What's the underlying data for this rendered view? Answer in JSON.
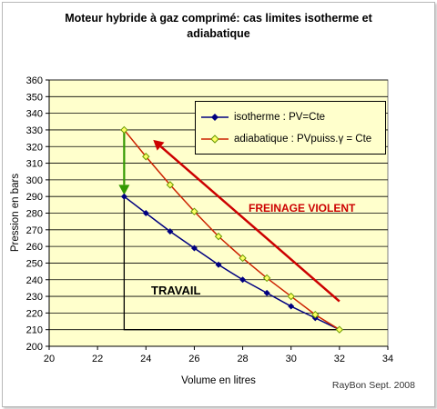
{
  "chart_data": {
    "type": "line",
    "title_line1": "Moteur hybride à gaz comprimé: cas limites isotherme et",
    "title_line2": "adiabatique",
    "xlabel": "Volume en litres",
    "ylabel": "Pression en bars",
    "xlim": [
      20,
      34
    ],
    "ylim": [
      200,
      360
    ],
    "xticks": [
      20,
      22,
      24,
      26,
      28,
      30,
      32,
      34
    ],
    "yticks": [
      200,
      210,
      220,
      230,
      240,
      250,
      260,
      270,
      280,
      290,
      300,
      310,
      320,
      330,
      340,
      350,
      360
    ],
    "grid": true,
    "legend_position": "top-right",
    "series": [
      {
        "name": "isotherme : PV=Cte",
        "color": "#000080",
        "marker": "diamond",
        "x": [
          23.1,
          24,
          25,
          26,
          27,
          28,
          29,
          30,
          31,
          32
        ],
        "y": [
          290,
          280,
          269,
          259,
          249,
          240,
          232,
          224,
          217,
          210
        ]
      },
      {
        "name": "adiabatique : PVpuiss.γ = Cte",
        "color": "#cc2200",
        "marker": "diamond-yellow",
        "x": [
          23.1,
          24,
          25,
          26,
          27,
          28,
          29,
          30,
          31,
          32
        ],
        "y": [
          330,
          314,
          297,
          281,
          266,
          253,
          241,
          230,
          219,
          210
        ]
      }
    ],
    "annotations": {
      "freinage": "FREINAGE VIOLENT",
      "travail": "TRAVAIL",
      "red_arrow": {
        "from": [
          32,
          227
        ],
        "to": [
          24.3,
          324
        ],
        "color": "#cc0000"
      },
      "green_arrow": {
        "from": [
          23.1,
          330
        ],
        "to": [
          23.1,
          291
        ],
        "color": "#339900"
      },
      "travail_triangle": {
        "points": [
          [
            23.1,
            290
          ],
          [
            23.1,
            210
          ],
          [
            32,
            210
          ]
        ],
        "color": "#000000"
      }
    },
    "plot_bg": "#ffffcc"
  },
  "credit": "RayBon Sept. 2008"
}
